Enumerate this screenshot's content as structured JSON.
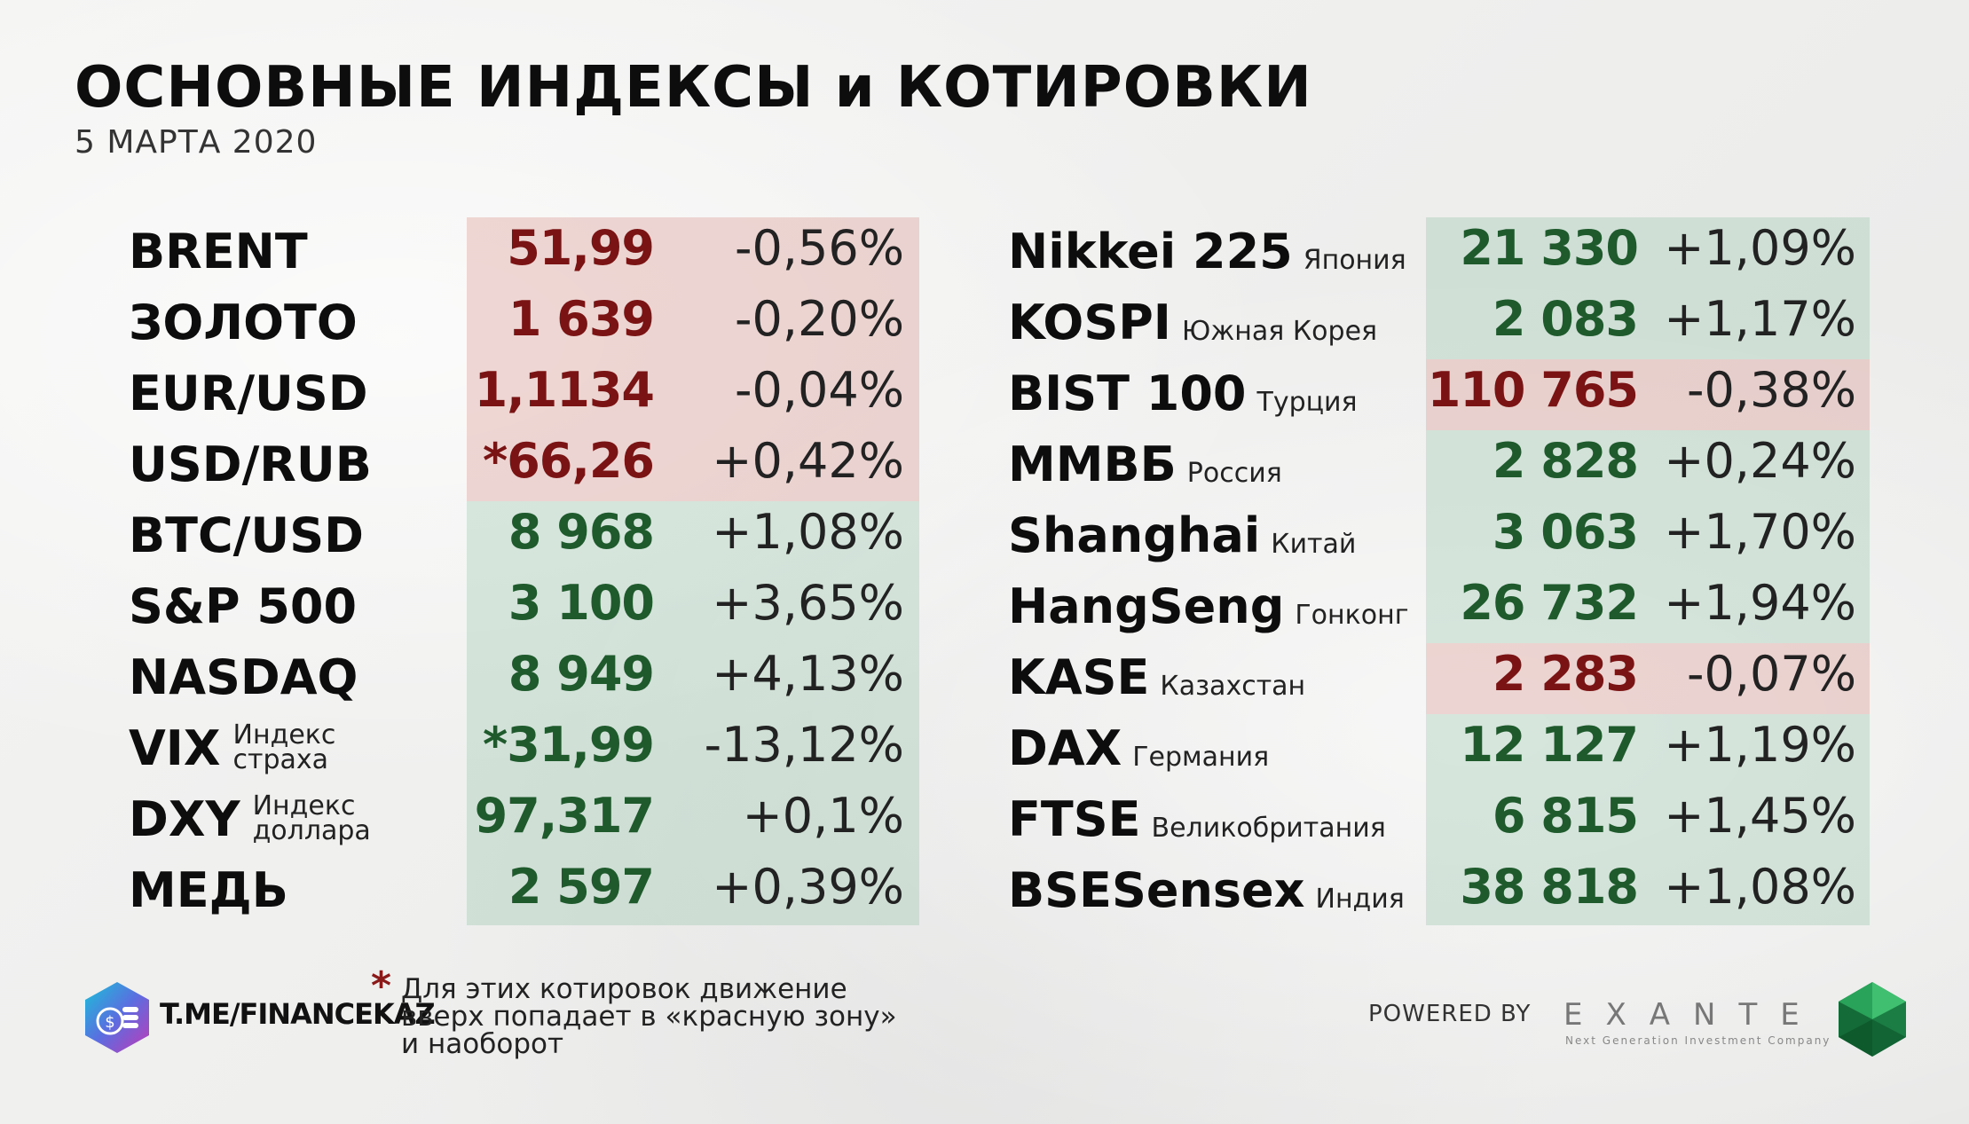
{
  "header": {
    "title": "ОСНОВНЫЕ ИНДЕКСЫ и КОТИРОВКИ",
    "date": "5 МАРТА 2020"
  },
  "left_table": [
    {
      "name": "BRENT",
      "value": "51,99",
      "change": "-0,56%",
      "zone": "red"
    },
    {
      "name": "ЗОЛОТО",
      "value": "1 639",
      "change": "-0,20%",
      "zone": "red"
    },
    {
      "name": "EUR/USD",
      "value": "1,1134",
      "change": "-0,04%",
      "zone": "red"
    },
    {
      "name": "USD/RUB",
      "value": "*66,26",
      "change": "+0,42%",
      "zone": "red"
    },
    {
      "name": "BTC/USD",
      "value": "8 968",
      "change": "+1,08%",
      "zone": "green"
    },
    {
      "name": "S&P 500",
      "value": "3 100",
      "change": "+3,65%",
      "zone": "green"
    },
    {
      "name": "NASDAQ",
      "value": "8 949",
      "change": "+4,13%",
      "zone": "green"
    },
    {
      "name": "VIX",
      "sub1": "Индекс",
      "sub2": "страха",
      "value": "*31,99",
      "change": "-13,12%",
      "zone": "green"
    },
    {
      "name": "DXY",
      "sub1": "Индекс",
      "sub2": "доллара",
      "value": "97,317",
      "change": "+0,1%",
      "zone": "green"
    },
    {
      "name": "МЕДЬ",
      "value": "2 597",
      "change": "+0,39%",
      "zone": "green"
    }
  ],
  "right_table": [
    {
      "name": "Nikkei 225",
      "country": "Япония",
      "value": "21 330",
      "change": "+1,09%",
      "zone": "green"
    },
    {
      "name": "KOSPI",
      "country": "Южная Корея",
      "value": "2 083",
      "change": "+1,17%",
      "zone": "green"
    },
    {
      "name": "BIST 100",
      "country": "Турция",
      "value": "110 765",
      "change": "-0,38%",
      "zone": "red"
    },
    {
      "name": "ММВБ",
      "country": "Россия",
      "value": "2 828",
      "change": "+0,24%",
      "zone": "green"
    },
    {
      "name": "Shanghai",
      "country": "Китай",
      "value": "3 063",
      "change": "+1,70%",
      "zone": "green"
    },
    {
      "name": "HangSeng",
      "country": "Гонконг",
      "value": "26 732",
      "change": "+1,94%",
      "zone": "green"
    },
    {
      "name": "KASE",
      "country": "Казахстан",
      "value": "2 283",
      "change": "-0,07%",
      "zone": "red"
    },
    {
      "name": "DAX",
      "country": "Германия",
      "value": "12 127",
      "change": "+1,19%",
      "zone": "green"
    },
    {
      "name": "FTSE",
      "country": "Великобритания",
      "value": "6 815",
      "change": "+1,45%",
      "zone": "green"
    },
    {
      "name": "BSESensex",
      "country": "Индия",
      "value": "38 818",
      "change": "+1,08%",
      "zone": "green"
    }
  ],
  "footnote": {
    "star": "*",
    "line1": "Для этих котировок движение",
    "line2": "вверх попадает в «красную зону»",
    "line3": "и наоборот"
  },
  "branding": {
    "telegram": "T.ME/FINANCEKAZ",
    "powered_by": "POWERED BY",
    "exante": "EXANTE",
    "exante_tagline": "Next Generation Investment Company",
    "logo_icon": "coin-stack-hexagon-icon",
    "gem_icon": "green-gem-icon"
  },
  "colors": {
    "red_text": "#7a1414",
    "green_text": "#1f5a2d",
    "red_zone": "#d68c87",
    "green_zone": "#82b99b"
  }
}
